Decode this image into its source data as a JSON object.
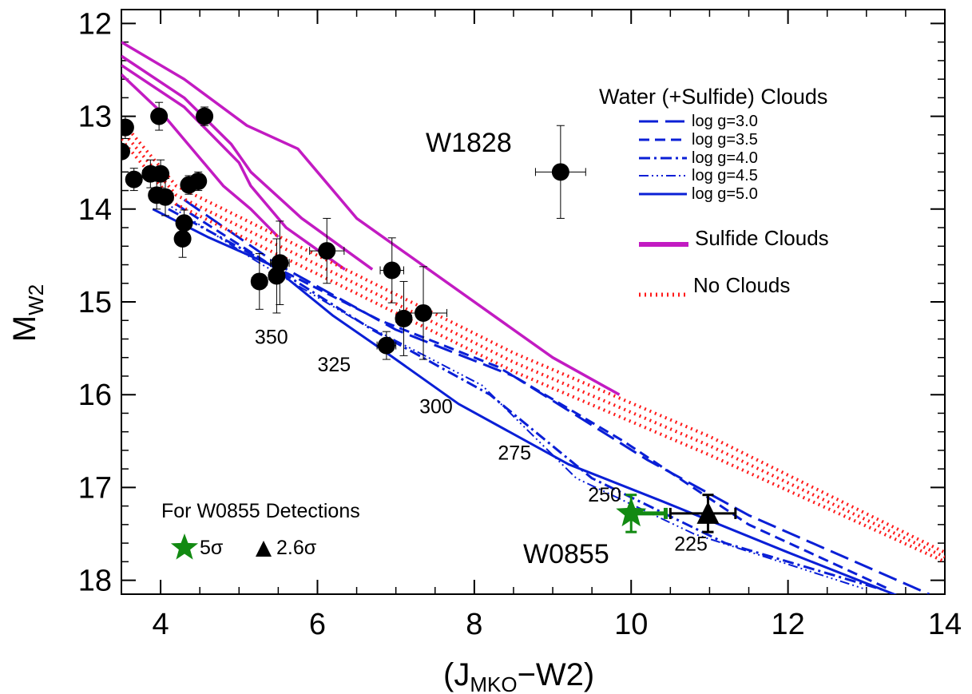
{
  "chart_data": {
    "type": "line",
    "xlabel": "(J",
    "xlabel_sub": "MKO",
    "xlabel_tail": "−W2)",
    "ylabel": "M",
    "ylabel_sub": "W2",
    "xlim": [
      3.5,
      14
    ],
    "ylim": [
      18.15,
      11.85
    ],
    "y_inverted": true,
    "xticks": [
      4,
      6,
      8,
      10,
      12,
      14
    ],
    "yticks": [
      12,
      13,
      14,
      15,
      16,
      17,
      18
    ],
    "grid": false,
    "legend": {
      "title": "Water (+Sulfide) Clouds",
      "placement": "top-right",
      "entries": [
        "log g=3.0",
        "log g=3.5",
        "log g=4.0",
        "log g=4.5",
        "log g=5.0",
        "Sulfide Clouds",
        "No Clouds"
      ]
    },
    "colors": {
      "water": "#0a1fd6",
      "sulfide": "#c21bc2",
      "noclouds": "#ff1a1a",
      "detect5": "#128a12",
      "points": "#000000"
    },
    "series": [
      {
        "name": "log g=3.0",
        "group": "water",
        "style": "longdash",
        "x": [
          4.3,
          5.5,
          7.0,
          8.5,
          10.2,
          11.5,
          13.8
        ],
        "y": [
          13.9,
          14.6,
          15.3,
          15.8,
          16.7,
          17.3,
          18.15
        ]
      },
      {
        "name": "log g=3.5",
        "group": "water",
        "style": "dash",
        "x": [
          4.2,
          5.4,
          6.8,
          8.3,
          9.9,
          11.5,
          13.3
        ],
        "y": [
          13.95,
          14.6,
          15.2,
          15.7,
          16.5,
          17.4,
          18.1
        ]
      },
      {
        "name": "log g=4.0",
        "group": "water",
        "style": "dashdot",
        "x": [
          4.1,
          5.3,
          6.7,
          8.2,
          9.5,
          11.2,
          13.2
        ],
        "y": [
          14.0,
          14.55,
          15.3,
          16.0,
          16.9,
          17.6,
          18.1
        ]
      },
      {
        "name": "log g=4.5",
        "group": "water",
        "style": "dashdotdot",
        "x": [
          4.0,
          5.2,
          6.5,
          8.1,
          9.3,
          10.8,
          13.0
        ],
        "y": [
          13.9,
          14.55,
          15.2,
          15.9,
          16.9,
          17.5,
          18.1
        ]
      },
      {
        "name": "log g=5.0",
        "group": "water",
        "style": "solid",
        "x": [
          3.9,
          4.6,
          5.4,
          6.2,
          6.8,
          7.8,
          9.2,
          10.4,
          12.0,
          13.5
        ],
        "y": [
          14.0,
          14.3,
          14.6,
          15.15,
          15.5,
          16.1,
          16.75,
          17.15,
          17.7,
          18.2
        ]
      },
      {
        "name": "Sulfide Clouds",
        "group": "sulfide",
        "style": "solid",
        "lines": [
          {
            "x": [
              3.5,
              4.3,
              5.1,
              5.75,
              6.5,
              9.0,
              9.85
            ],
            "y": [
              12.2,
              12.6,
              13.1,
              13.35,
              14.1,
              15.6,
              16.0
            ]
          },
          {
            "x": [
              3.5,
              4.3,
              4.9,
              5.15,
              5.8,
              6.7
            ],
            "y": [
              12.35,
              12.8,
              13.3,
              13.6,
              14.1,
              14.65
            ]
          },
          {
            "x": [
              3.5,
              4.3,
              5.0,
              5.15,
              5.6,
              6.35
            ],
            "y": [
              12.45,
              12.9,
              13.5,
              13.75,
              14.2,
              14.65
            ]
          },
          {
            "x": [
              3.5,
              4.0,
              4.8,
              5.15,
              5.5
            ],
            "y": [
              12.55,
              12.95,
              13.75,
              14.0,
              14.3
            ]
          }
        ]
      },
      {
        "name": "No Clouds",
        "group": "noclouds",
        "style": "dotted",
        "lines": [
          {
            "x": [
              3.5,
              4.2,
              6.0,
              8.5,
              11.0,
              14.0
            ],
            "y": [
              13.05,
              13.75,
              14.5,
              15.55,
              16.45,
              17.7
            ]
          },
          {
            "x": [
              3.5,
              4.2,
              6.0,
              8.5,
              11.0,
              14.0
            ],
            "y": [
              13.15,
              13.85,
              14.6,
              15.65,
              16.55,
              17.75
            ]
          },
          {
            "x": [
              3.5,
              4.2,
              6.0,
              8.5,
              11.0,
              14.0
            ],
            "y": [
              13.25,
              13.95,
              14.7,
              15.75,
              16.65,
              17.8
            ]
          }
        ]
      }
    ],
    "points": [
      {
        "x": 3.55,
        "y": 13.12,
        "ex": 0.05,
        "ey": 0.12
      },
      {
        "x": 3.5,
        "y": 13.38,
        "ex": 0.0,
        "ey": 0.0
      },
      {
        "x": 3.66,
        "y": 13.68,
        "ex": 0.08,
        "ey": 0.12
      },
      {
        "x": 3.87,
        "y": 13.62,
        "ex": 0.1,
        "ey": 0.15
      },
      {
        "x": 3.98,
        "y": 13.0,
        "ex": 0.08,
        "ey": 0.15
      },
      {
        "x": 4.0,
        "y": 13.62,
        "ex": 0.08,
        "ey": 0.15
      },
      {
        "x": 3.95,
        "y": 13.85,
        "ex": 0.08,
        "ey": 0.15
      },
      {
        "x": 4.06,
        "y": 13.87,
        "ex": 0.1,
        "ey": 0.2
      },
      {
        "x": 4.3,
        "y": 14.15,
        "ex": 0.06,
        "ey": 0.14
      },
      {
        "x": 4.28,
        "y": 14.32,
        "ex": 0.06,
        "ey": 0.2
      },
      {
        "x": 4.36,
        "y": 13.74,
        "ex": 0.08,
        "ey": 0.1
      },
      {
        "x": 4.48,
        "y": 13.7,
        "ex": 0.08,
        "ey": 0.1
      },
      {
        "x": 4.56,
        "y": 13.0,
        "ex": 0.06,
        "ey": 0.1
      },
      {
        "x": 5.26,
        "y": 14.78,
        "ex": 0.1,
        "ey": 0.3
      },
      {
        "x": 5.48,
        "y": 14.72,
        "ex": 0.1,
        "ey": 0.4
      },
      {
        "x": 5.52,
        "y": 14.58,
        "ex": 0.12,
        "ey": 0.45
      },
      {
        "x": 6.12,
        "y": 14.45,
        "ex": 0.22,
        "ey": 0.35
      },
      {
        "x": 6.95,
        "y": 14.66,
        "ex": 0.15,
        "ey": 0.35
      },
      {
        "x": 6.88,
        "y": 15.47,
        "ex": 0.12,
        "ey": 0.15
      },
      {
        "x": 7.1,
        "y": 15.18,
        "ex": 0.1,
        "ey": 0.4
      },
      {
        "x": 7.35,
        "y": 15.12,
        "ex": 0.3,
        "ey": 0.5
      },
      {
        "x": 9.1,
        "y": 13.6,
        "ex": 0.32,
        "ey": 0.5
      }
    ],
    "detections": [
      {
        "label": "5σ",
        "marker": "star",
        "x": 10.0,
        "y": 17.28,
        "ex_minus": 0.0,
        "ex_plus": 0.44,
        "ey": 0.2
      },
      {
        "label": "2.6σ",
        "marker": "triangle",
        "x": 10.98,
        "y": 17.28,
        "ex_minus": 0.48,
        "ex_plus": 0.35,
        "ey": 0.2
      }
    ],
    "temperature_labels": [
      {
        "text": "350",
        "x": 5.2,
        "y": 15.45
      },
      {
        "text": "325",
        "x": 6.0,
        "y": 15.75
      },
      {
        "text": "300",
        "x": 7.3,
        "y": 16.2
      },
      {
        "text": "275",
        "x": 8.3,
        "y": 16.7
      },
      {
        "text": "250",
        "x": 9.45,
        "y": 17.15
      },
      {
        "text": "225",
        "x": 10.55,
        "y": 17.68
      }
    ],
    "annotations": {
      "w1828": "W1828",
      "w0855": "W0855",
      "detections_title": "For W0855 Detections"
    }
  }
}
